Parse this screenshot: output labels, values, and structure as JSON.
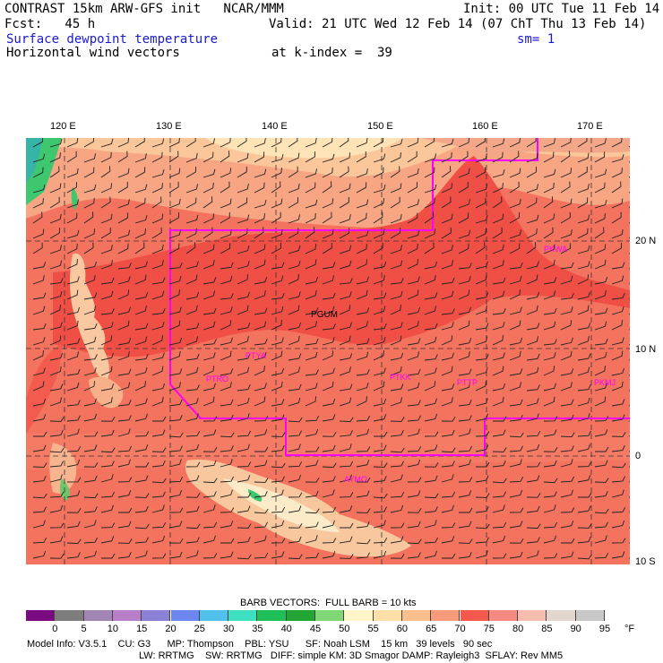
{
  "header": {
    "line1_left": "CONTRAST 15km ARW-GFS init   NCAR/MMM",
    "line1_right": "Init: 00 UTC Tue 11 Feb 14",
    "line2_left": "Fcst:   45 h",
    "line2_right": "Valid: 21 UTC Wed 12 Feb 14 (07 ChT Thu 13 Feb 14)",
    "field1": "Surface dewpoint temperature",
    "smoothing": "sm= 1",
    "field2": "Horizontal wind vectors",
    "k_index": "at k-index =  39"
  },
  "map": {
    "lon_labels": [
      "120 E",
      "130 E",
      "140 E",
      "150 E",
      "160 E",
      "170 E"
    ],
    "lat_labels": [
      "20 N",
      "10 N",
      "0",
      "10 S"
    ],
    "stations": [
      {
        "id": "PGUM",
        "color": "#000000"
      },
      {
        "id": "PTYA",
        "color": "#ff00ff"
      },
      {
        "id": "PTRO",
        "color": "#ff00ff"
      },
      {
        "id": "PTKK",
        "color": "#ff00ff"
      },
      {
        "id": "PTTP",
        "color": "#ff00ff"
      },
      {
        "id": "PKWA",
        "color": "#ff00ff"
      },
      {
        "id": "PKMJ",
        "color": "#ff00ff"
      },
      {
        "id": "AYMO",
        "color": "#ff00ff"
      }
    ],
    "colors": {
      "ocean_75": "#f05a4c",
      "ocean_70": "#f4735e",
      "ocean_65": "#f7a583",
      "land_high": "#f8e2b8",
      "green": "#3ec76f",
      "boundary": "#ff00ff"
    }
  },
  "barb_note": "BARB VECTORS:  FULL BARB = 10 kts",
  "colorbar": {
    "labels": [
      "0",
      "5",
      "10",
      "15",
      "20",
      "25",
      "30",
      "35",
      "40",
      "45",
      "50",
      "55",
      "60",
      "65",
      "70",
      "75",
      "80",
      "85",
      "90",
      "95"
    ],
    "unit": "°F",
    "colors": [
      "#7a0a82",
      "#7d7d7d",
      "#a185b5",
      "#b77fc7",
      "#8b82d8",
      "#6d86ef",
      "#4fc1ea",
      "#3fe0c2",
      "#1fbf58",
      "#22a535",
      "#7fd875",
      "#fff5c8",
      "#fde0a8",
      "#fbbe8d",
      "#f79b7a",
      "#f5584c",
      "#f48a82",
      "#f6bcad",
      "#e3d6cf",
      "#c8c8c8"
    ]
  },
  "footer": {
    "line1": "Model Info: V3.5.1    CU: G3      MP: Thompson    PBL: YSU      SF: Noah LSM    15 km   39 levels   90 sec",
    "line2": "LW: RRTMG    SW: RRTMG   DIFF: simple KM: 3D Smagor DAMP: Rayleigh3  SFLAY: Rev MM5"
  }
}
